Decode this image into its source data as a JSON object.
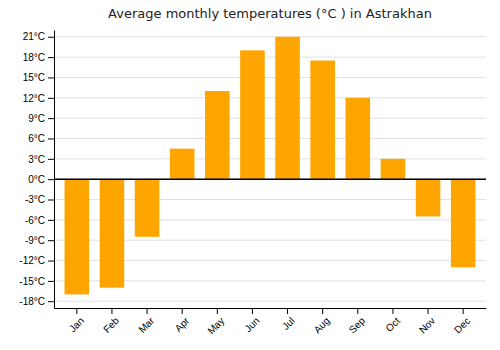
{
  "chart_data": {
    "type": "bar",
    "title": "Average monthly temperatures (°C ) in Astrakhan",
    "categories": [
      "Jan",
      "Feb",
      "Mar",
      "Apr",
      "May",
      "Jun",
      "Jul",
      "Aug",
      "Sep",
      "Oct",
      "Nov",
      "Dec"
    ],
    "values": [
      -17,
      -16,
      -8.5,
      4.5,
      13,
      19,
      21,
      17.5,
      12,
      3,
      -5.5,
      -13
    ],
    "color": "#FFA500",
    "ylim": [
      -19,
      22
    ],
    "yticks": [
      {
        "value": -18,
        "label": "-18°C"
      },
      {
        "value": -15,
        "label": "-15°C"
      },
      {
        "value": -12,
        "label": "-12°C"
      },
      {
        "value": -9,
        "label": "-9°C"
      },
      {
        "value": -6,
        "label": "-6°C"
      },
      {
        "value": -3,
        "label": "-3°C"
      },
      {
        "value": 0,
        "label": "0°C"
      },
      {
        "value": 3,
        "label": "3°C"
      },
      {
        "value": 6,
        "label": "6°C"
      },
      {
        "value": 9,
        "label": "9°C"
      },
      {
        "value": 12,
        "label": "12°C"
      },
      {
        "value": 15,
        "label": "15°C"
      },
      {
        "value": 18,
        "label": "18°C"
      },
      {
        "value": 21,
        "label": "21°C"
      }
    ],
    "grid": true
  }
}
